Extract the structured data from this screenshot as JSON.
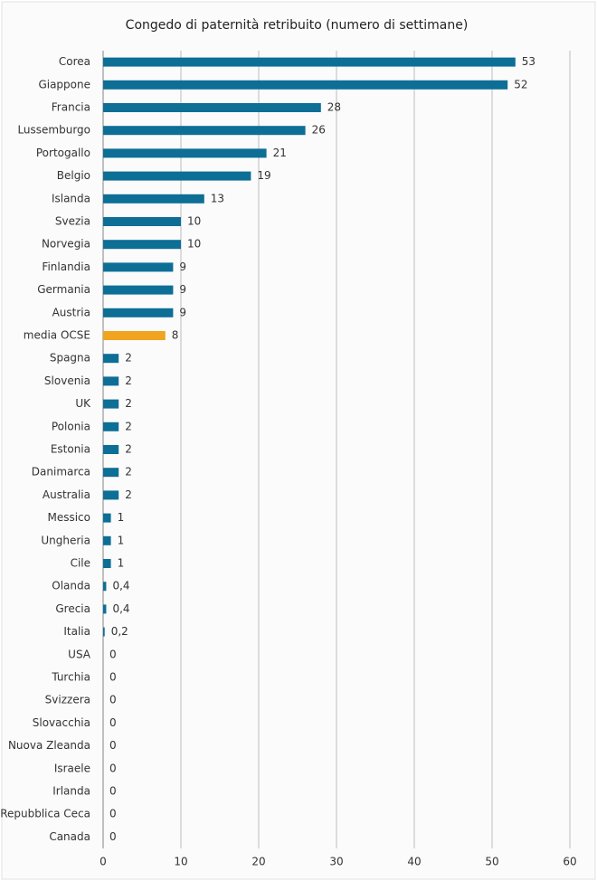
{
  "chart_data": {
    "type": "barh",
    "title": "Congedo di paternità retribuito (numero di settimane)",
    "categories": [
      "Corea",
      "Giappone",
      "Francia",
      "Lussemburgo",
      "Portogallo",
      "Belgio",
      "Islanda",
      "Svezia",
      "Norvegia",
      "Finlandia",
      "Germania",
      "Austria",
      "media OCSE",
      "Spagna",
      "Slovenia",
      "UK",
      "Polonia",
      "Estonia",
      "Danimarca",
      "Australia",
      "Messico",
      "Ungheria",
      "Cile",
      "Olanda",
      "Grecia",
      "Italia",
      "USA",
      "Turchia",
      "Svizzera",
      "Slovacchia",
      "Nuova Zleanda",
      "Israele",
      "Irlanda",
      "Repubblica Ceca",
      "Canada"
    ],
    "values": [
      53,
      52,
      28,
      26,
      21,
      19,
      13,
      10,
      10,
      9,
      9,
      9,
      8,
      2,
      2,
      2,
      2,
      2,
      2,
      2,
      1,
      1,
      1,
      0.4,
      0.4,
      0.2,
      0,
      0,
      0,
      0,
      0,
      0,
      0,
      0,
      0
    ],
    "value_labels": [
      "53",
      "52",
      "28",
      "26",
      "21",
      "19",
      "13",
      "10",
      "10",
      "9",
      "9",
      "9",
      "8",
      "2",
      "2",
      "2",
      "2",
      "2",
      "2",
      "2",
      "1",
      "1",
      "1",
      "0,4",
      "0,4",
      "0,2",
      "0",
      "0",
      "0",
      "0",
      "0",
      "0",
      "0",
      "0",
      "0"
    ],
    "colors": [
      "#0d6e96",
      "#0d6e96",
      "#0d6e96",
      "#0d6e96",
      "#0d6e96",
      "#0d6e96",
      "#0d6e96",
      "#0d6e96",
      "#0d6e96",
      "#0d6e96",
      "#0d6e96",
      "#0d6e96",
      "#f0a41f",
      "#0d6e96",
      "#0d6e96",
      "#0d6e96",
      "#0d6e96",
      "#0d6e96",
      "#0d6e96",
      "#0d6e96",
      "#0d6e96",
      "#0d6e96",
      "#0d6e96",
      "#0d6e96",
      "#0d6e96",
      "#0d6e96",
      "#0d6e96",
      "#0d6e96",
      "#0d6e96",
      "#0d6e96",
      "#0d6e96",
      "#0d6e96",
      "#0d6e96",
      "#0d6e96",
      "#0d6e96"
    ],
    "xlim": [
      0,
      60
    ],
    "xticks": [
      0,
      10,
      20,
      30,
      40,
      50,
      60
    ],
    "grid": true
  }
}
